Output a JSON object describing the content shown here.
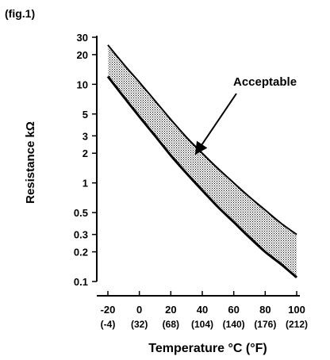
{
  "fig_label": "(fig.1)",
  "chart_data": {
    "type": "area",
    "title": "",
    "xlabel": "Temperature °C (°F)",
    "ylabel": "Resistance kΩ",
    "yscale": "log",
    "xlim": [
      -20,
      100
    ],
    "ylim": [
      0.1,
      30
    ],
    "x_ticks": [
      {
        "value": -20,
        "label": "-20",
        "sub": "(-4)"
      },
      {
        "value": 0,
        "label": "0",
        "sub": "(32)"
      },
      {
        "value": 20,
        "label": "20",
        "sub": "(68)"
      },
      {
        "value": 40,
        "label": "40",
        "sub": "(104)"
      },
      {
        "value": 60,
        "label": "60",
        "sub": "(140)"
      },
      {
        "value": 80,
        "label": "80",
        "sub": "(176)"
      },
      {
        "value": 100,
        "label": "100",
        "sub": "(212)"
      }
    ],
    "y_ticks": [
      {
        "value": 30,
        "label": "30"
      },
      {
        "value": 20,
        "label": "20"
      },
      {
        "value": 10,
        "label": "10"
      },
      {
        "value": 5,
        "label": "5"
      },
      {
        "value": 3,
        "label": "3"
      },
      {
        "value": 2,
        "label": "2"
      },
      {
        "value": 1,
        "label": "1"
      },
      {
        "value": 0.5,
        "label": "0.5"
      },
      {
        "value": 0.3,
        "label": "0.3"
      },
      {
        "value": 0.2,
        "label": "0.2"
      },
      {
        "value": 0.1,
        "label": "0.1"
      }
    ],
    "x": [
      -20,
      -10,
      0,
      10,
      20,
      30,
      40,
      50,
      60,
      70,
      80,
      90,
      100
    ],
    "band_upper": [
      25,
      16,
      10.5,
      6.8,
      4.4,
      2.9,
      2.0,
      1.4,
      1.0,
      0.72,
      0.53,
      0.39,
      0.3
    ],
    "band_lower": [
      12,
      7.5,
      4.7,
      3.0,
      1.9,
      1.25,
      0.84,
      0.57,
      0.4,
      0.28,
      0.2,
      0.15,
      0.11
    ],
    "annotation": {
      "text": "Acceptable",
      "points_to_x": 32,
      "points_to_y": 1.9
    }
  }
}
